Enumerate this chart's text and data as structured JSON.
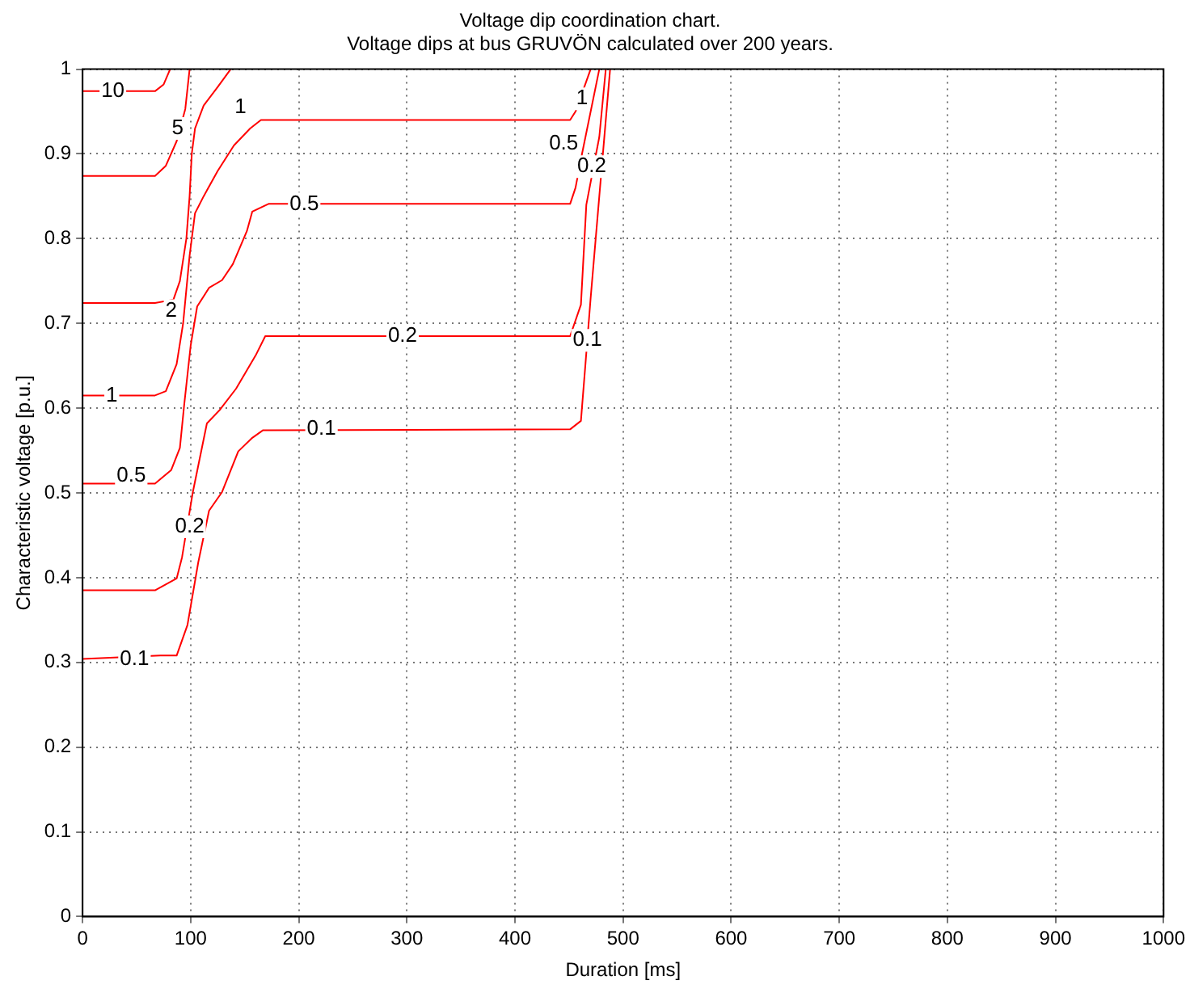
{
  "chart_data": {
    "type": "line",
    "title": "Voltage dip coordination chart.",
    "subtitle": "Voltage dips at bus GRUVÖN calculated over 200 years.",
    "xlabel": "Duration [ms]",
    "ylabel": "Characteristic voltage [p.u.]",
    "xlim": [
      0,
      1000
    ],
    "xticks": [
      0,
      100,
      200,
      300,
      400,
      500,
      600,
      700,
      800,
      900,
      1000
    ],
    "ylim": [
      0,
      1
    ],
    "yticks": [
      0,
      0.1,
      0.2,
      0.3,
      0.4,
      0.5,
      0.6,
      0.7,
      0.8,
      0.9,
      1
    ],
    "grid": true,
    "legend": false,
    "marker": "none",
    "line_style": "solid",
    "series": [
      {
        "color": "#ff0000",
        "x": [
          0,
          67,
          75,
          81
        ],
        "values": [
          0.974,
          0.974,
          0.982,
          1.0
        ]
      },
      {
        "color": "#ff0000",
        "x": [
          0,
          67,
          77,
          87,
          95,
          99
        ],
        "values": [
          0.874,
          0.874,
          0.886,
          0.915,
          0.953,
          1.0
        ]
      },
      {
        "color": "#ff0000",
        "x": [
          0,
          67,
          84,
          90,
          96,
          99,
          101,
          104,
          112,
          125,
          137
        ],
        "values": [
          0.724,
          0.724,
          0.728,
          0.75,
          0.8,
          0.85,
          0.9,
          0.93,
          0.957,
          0.979,
          1.0
        ]
      },
      {
        "color": "#ff0000",
        "x": [
          0,
          67,
          77,
          87,
          93,
          99,
          104,
          112,
          125,
          140,
          155,
          165,
          451,
          456,
          470
        ],
        "values": [
          0.615,
          0.615,
          0.62,
          0.652,
          0.7,
          0.78,
          0.83,
          0.85,
          0.88,
          0.91,
          0.93,
          0.94,
          0.94,
          0.95,
          1.0
        ]
      },
      {
        "color": "#ff0000",
        "x": [
          0,
          67,
          82,
          90,
          94,
          100,
          106,
          117,
          129,
          139,
          152,
          157,
          172,
          451,
          456,
          462,
          478
        ],
        "values": [
          0.511,
          0.511,
          0.527,
          0.553,
          0.604,
          0.674,
          0.72,
          0.742,
          0.751,
          0.77,
          0.809,
          0.832,
          0.841,
          0.841,
          0.86,
          0.9,
          1.0
        ]
      },
      {
        "color": "#ff0000",
        "x": [
          0,
          67,
          87,
          92,
          102,
          115,
          127,
          142,
          160,
          169,
          451,
          461,
          466,
          478,
          484
        ],
        "values": [
          0.385,
          0.385,
          0.399,
          0.424,
          0.501,
          0.582,
          0.598,
          0.623,
          0.662,
          0.685,
          0.685,
          0.722,
          0.84,
          0.92,
          1.0
        ]
      },
      {
        "color": "#ff0000",
        "x": [
          0,
          72,
          87,
          97,
          107,
          117,
          129,
          144,
          157,
          167,
          451,
          461,
          465,
          470,
          478,
          488
        ],
        "values": [
          0.304,
          0.308,
          0.308,
          0.344,
          0.418,
          0.479,
          0.501,
          0.549,
          0.565,
          0.574,
          0.575,
          0.585,
          0.649,
          0.73,
          0.85,
          1.0
        ]
      }
    ],
    "annotations": [
      {
        "text": "10",
        "x": 28,
        "y": 0.974
      },
      {
        "text": "5",
        "x": 88,
        "y": 0.93
      },
      {
        "text": "2",
        "x": 82,
        "y": 0.715
      },
      {
        "text": "1",
        "x": 27,
        "y": 0.615
      },
      {
        "text": "1",
        "x": 146,
        "y": 0.955
      },
      {
        "text": "0.5",
        "x": 45,
        "y": 0.52
      },
      {
        "text": "0.5",
        "x": 205,
        "y": 0.841
      },
      {
        "text": "0.2",
        "x": 99,
        "y": 0.46
      },
      {
        "text": "0.2",
        "x": 296,
        "y": 0.685
      },
      {
        "text": "0.1",
        "x": 48,
        "y": 0.304
      },
      {
        "text": "0.1",
        "x": 221,
        "y": 0.575
      },
      {
        "text": "0.1",
        "x": 467,
        "y": 0.68
      },
      {
        "text": "1",
        "x": 462,
        "y": 0.965
      },
      {
        "text": "0.5",
        "x": 445,
        "y": 0.912
      },
      {
        "text": "0.2",
        "x": 471,
        "y": 0.885
      }
    ]
  }
}
